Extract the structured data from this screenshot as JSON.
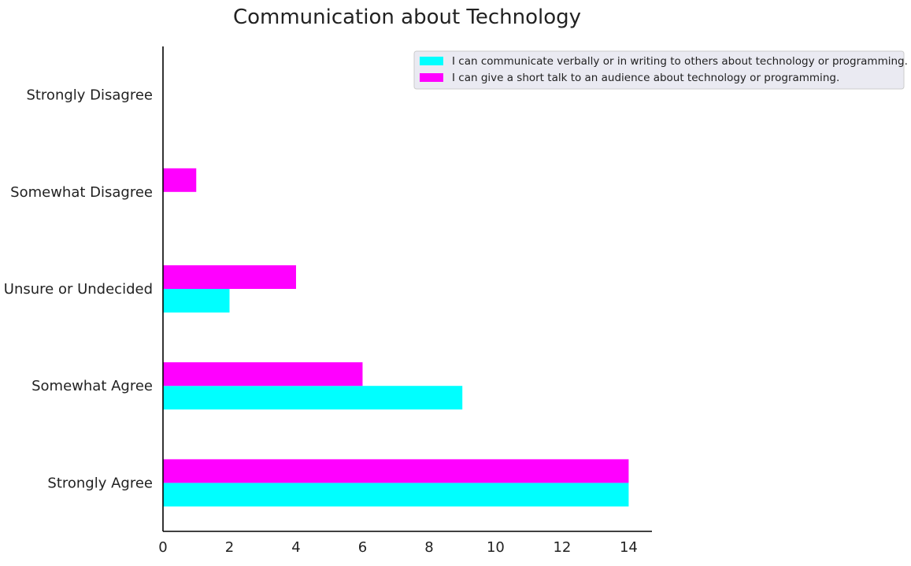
{
  "chart_data": {
    "type": "bar",
    "orientation": "horizontal",
    "title": "Communication about Technology",
    "xlabel": "",
    "ylabel": "",
    "categories": [
      "Strongly Agree",
      "Somewhat Agree",
      "Unsure or Undecided",
      "Somewhat Disagree",
      "Strongly Disagree"
    ],
    "series": [
      {
        "name": "I can communicate verbally or in writing to others about technology or programming.",
        "color": "#00ffff",
        "values": [
          14,
          9,
          2,
          0,
          0
        ]
      },
      {
        "name": "I can give a short talk to an audience about technology or programming.",
        "color": "#ff00ff",
        "values": [
          14,
          6,
          4,
          1,
          0
        ]
      }
    ],
    "xlim": [
      0,
      14.7
    ],
    "xticks": [
      0,
      2,
      4,
      6,
      8,
      10,
      12,
      14
    ],
    "grid": false,
    "legend_position": "top-right"
  }
}
